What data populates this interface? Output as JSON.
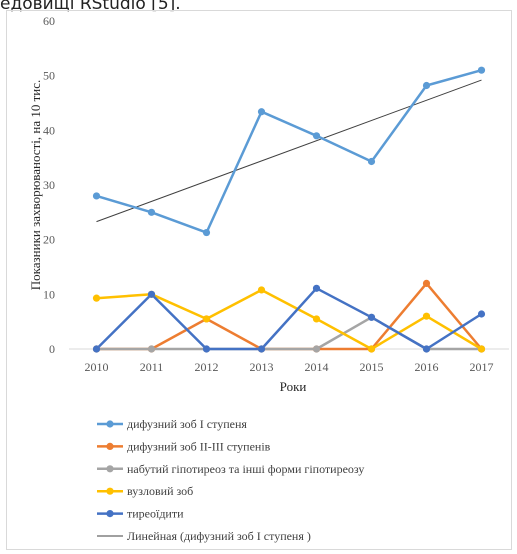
{
  "caption_fragment": "едовищі RStudio [5].",
  "chart_data": {
    "type": "line",
    "title": "",
    "xlabel": "Роки",
    "ylabel": "Показники захворюваності, на 10 тис.",
    "ylim": [
      0,
      60
    ],
    "yticks": [
      0,
      10,
      20,
      30,
      40,
      50,
      60
    ],
    "x": [
      "2010",
      "2011",
      "2012",
      "2013",
      "2014",
      "2015",
      "2016",
      "2017"
    ],
    "grid": false,
    "legend_position": "bottom",
    "series": [
      {
        "name": "дифузний зоб І ступеня",
        "color": "#5b9bd5",
        "values": [
          28.0,
          25.0,
          21.3,
          43.4,
          39.0,
          34.3,
          48.2,
          51.0
        ]
      },
      {
        "name": "дифузний зоб ІІ-ІІІ  ступенів",
        "color": "#ed7d31",
        "values": [
          0,
          0,
          5.5,
          0,
          0,
          0,
          12.0,
          0
        ]
      },
      {
        "name": "набутий гіпотиреоз та інші форми гіпотиреозу",
        "color": "#a5a5a5",
        "values": [
          0,
          0,
          0,
          0,
          0,
          5.8,
          0,
          0
        ]
      },
      {
        "name": "вузловий зоб",
        "color": "#ffc000",
        "values": [
          9.3,
          10.0,
          5.5,
          10.8,
          5.5,
          0,
          6.0,
          0
        ]
      },
      {
        "name": "тиреоїдити",
        "color": "#4472c4",
        "values": [
          0,
          10.0,
          0,
          0,
          11.1,
          5.8,
          0,
          6.4
        ]
      }
    ],
    "trendline": {
      "name": "Линейная (дифузний зоб І ступеня    )",
      "color": "#404040",
      "start": 23.3,
      "end": 49.2
    }
  }
}
